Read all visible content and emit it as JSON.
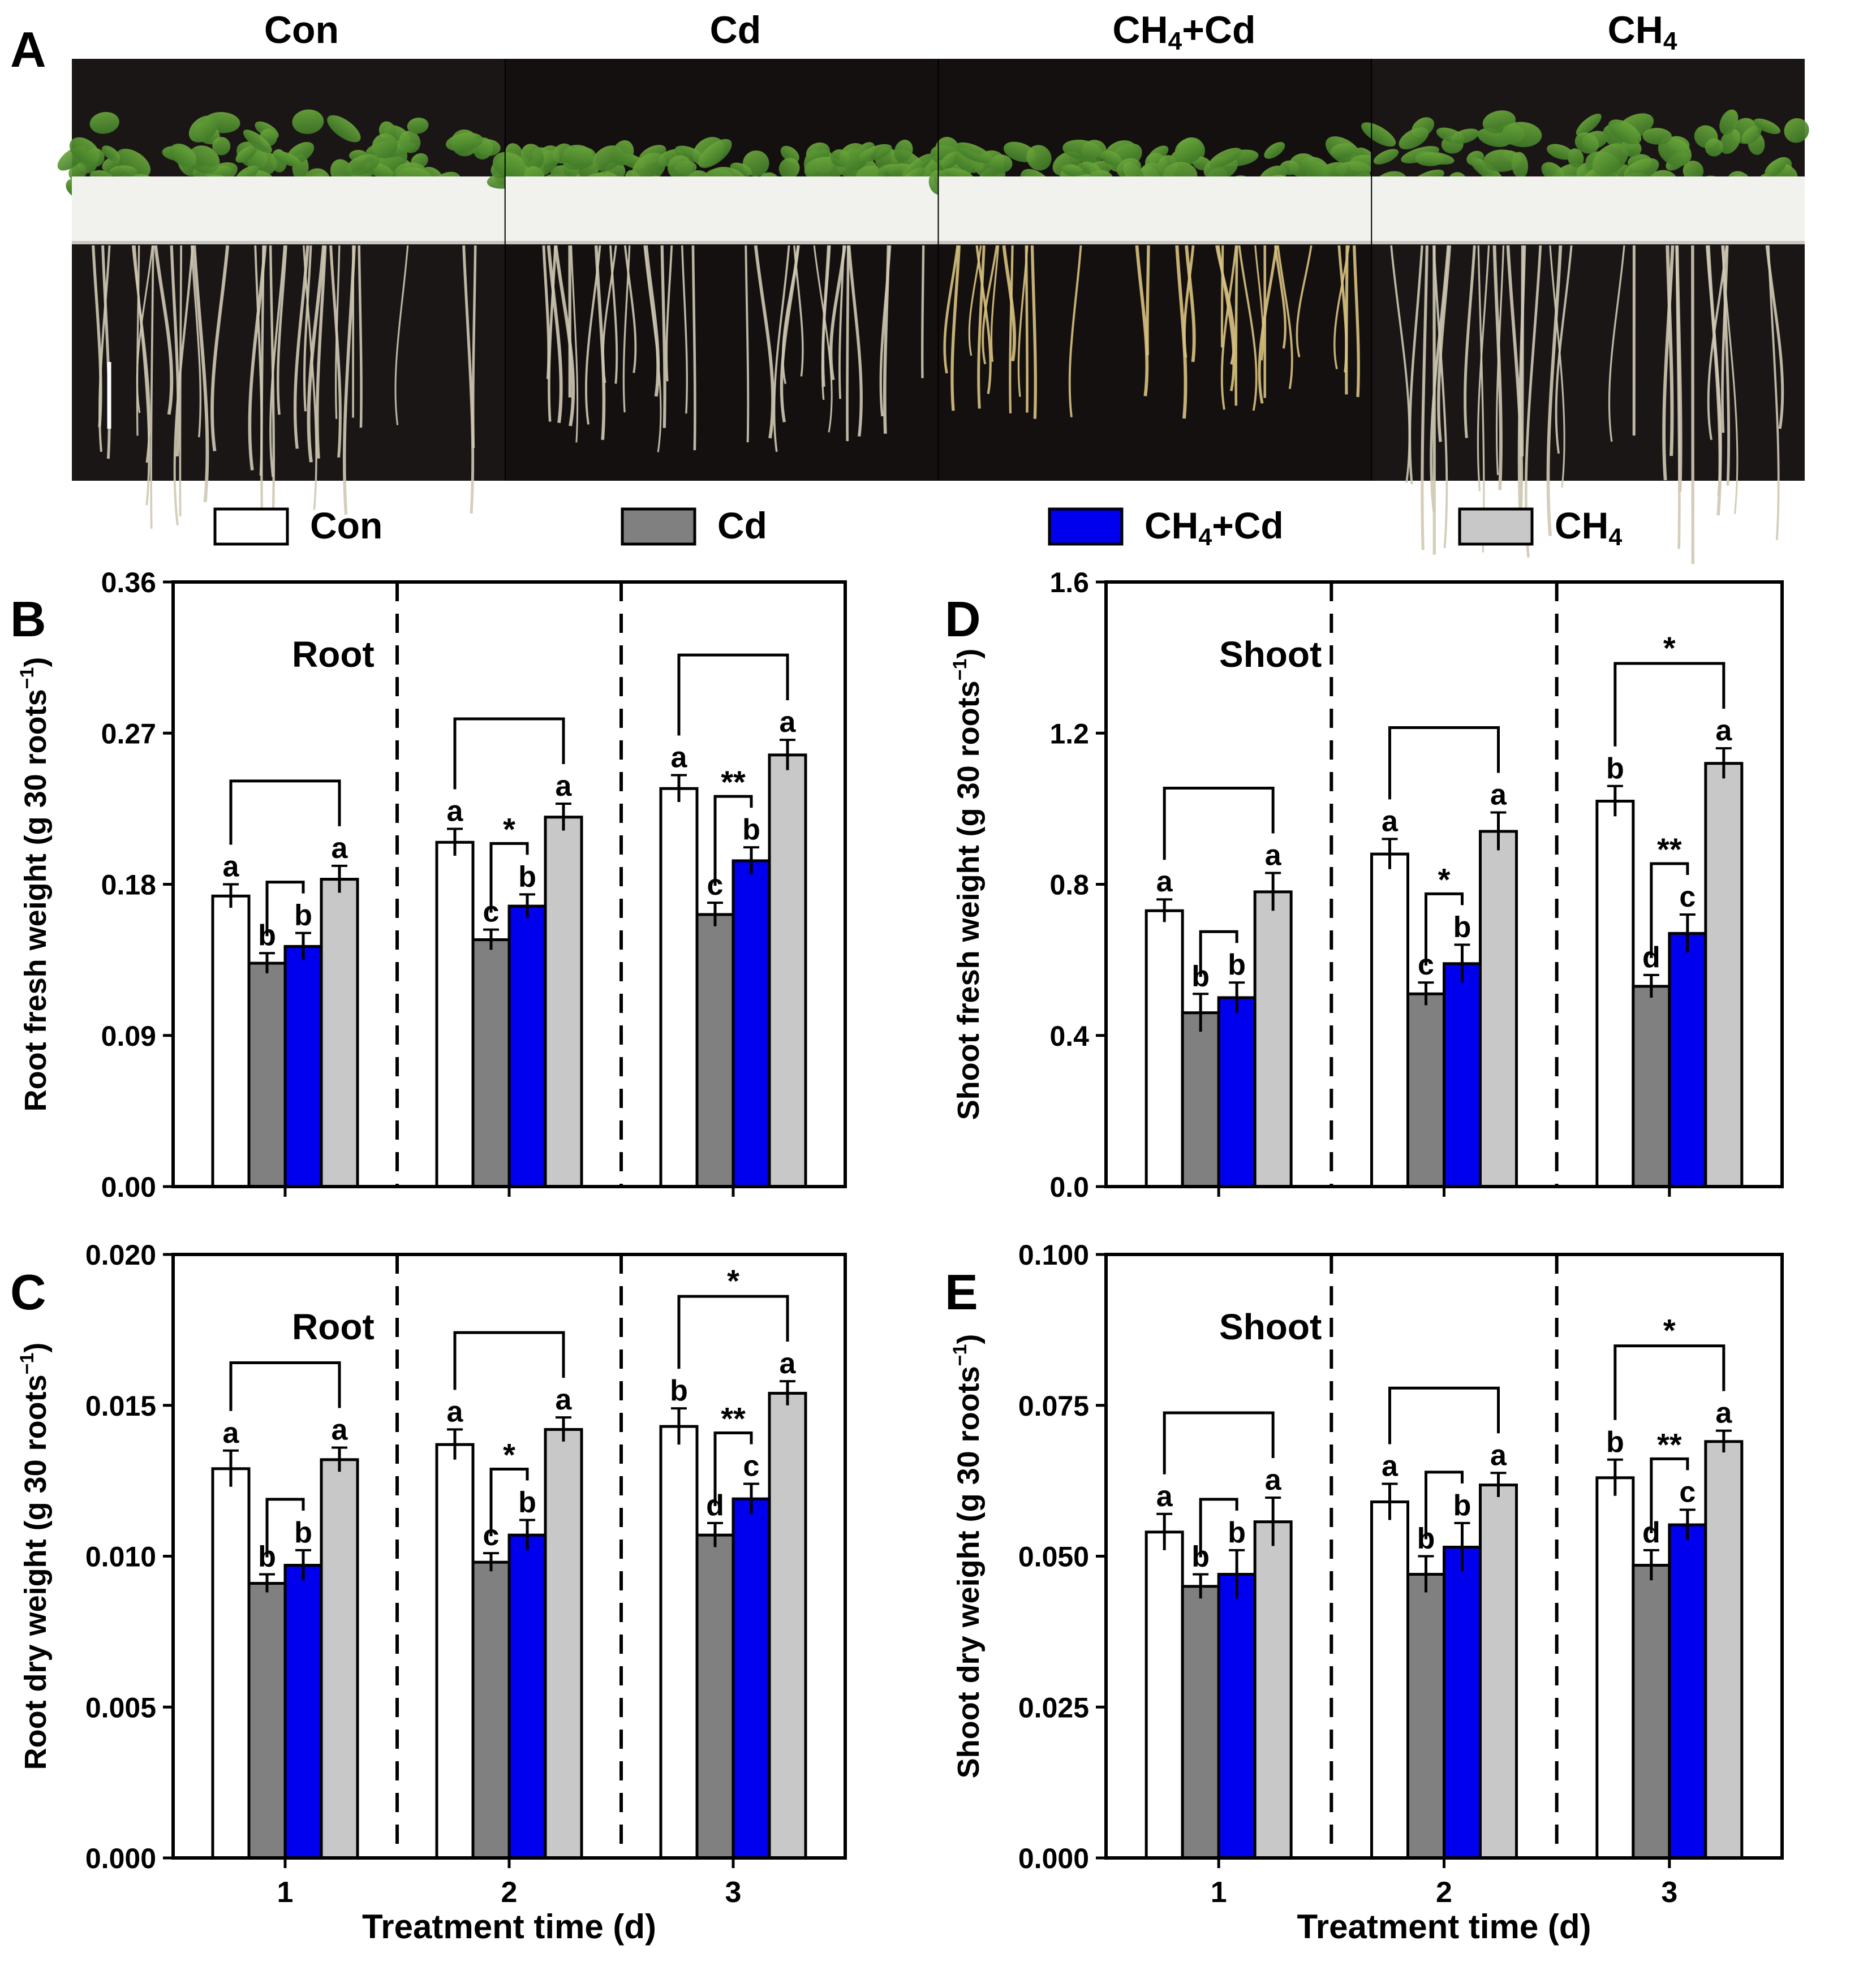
{
  "colors": {
    "con": "#ffffff",
    "cd": "#808080",
    "ch4cd": "#0000ee",
    "ch4": "#c8c8c8",
    "photo_bg": "#1b1616",
    "foam": "#f1f1ee",
    "leaf": "#4f8a2f",
    "root": "#cfc9b4"
  },
  "panel_a": {
    "letter": "A",
    "photo_labels": [
      {
        "main": "Con",
        "sub": ""
      },
      {
        "main": "Cd",
        "sub": ""
      },
      {
        "main": "CH",
        "sub": "4",
        "tail": "+Cd"
      },
      {
        "main": "CH",
        "sub": "4",
        "tail": ""
      }
    ]
  },
  "legend": [
    {
      "key": "con",
      "label": "Con",
      "sub": "",
      "tail": ""
    },
    {
      "key": "cd",
      "label": "Cd",
      "sub": "",
      "tail": ""
    },
    {
      "key": "ch4cd",
      "label": "CH",
      "sub": "4",
      "tail": "+Cd"
    },
    {
      "key": "ch4",
      "label": "CH",
      "sub": "4",
      "tail": ""
    }
  ],
  "chart_data": [
    {
      "panel": "B",
      "type": "bar",
      "inset_title": "Root",
      "ylabel": "Root fresh weight (g 30 roots",
      "ylabel_sup": "−1",
      "ylabel_tail": ")",
      "xlabel": "",
      "ylim": [
        0,
        0.36
      ],
      "yticks": [
        "0.00",
        "0.09",
        "0.18",
        "0.27",
        "0.36"
      ],
      "categories": [
        "1",
        "2",
        "3"
      ],
      "series": [
        {
          "name": "Con",
          "key": "con",
          "values": [
            0.173,
            0.205,
            0.237
          ],
          "errors": [
            0.007,
            0.008,
            0.008
          ],
          "letters": [
            "a",
            "a",
            "a"
          ]
        },
        {
          "name": "Cd",
          "key": "cd",
          "values": [
            0.133,
            0.147,
            0.162
          ],
          "errors": [
            0.006,
            0.006,
            0.007
          ],
          "letters": [
            "b",
            "c",
            "c"
          ]
        },
        {
          "name": "CH4+Cd",
          "key": "ch4cd",
          "values": [
            0.143,
            0.167,
            0.194
          ],
          "errors": [
            0.008,
            0.007,
            0.008
          ],
          "letters": [
            "b",
            "b",
            "b"
          ]
        },
        {
          "name": "CH4",
          "key": "ch4",
          "values": [
            0.183,
            0.22,
            0.257
          ],
          "errors": [
            0.008,
            0.008,
            0.009
          ],
          "letters": [
            "a",
            "a",
            "a"
          ]
        }
      ],
      "brackets": [
        [
          "",
          "",
          ""
        ],
        [
          "*",
          "",
          ""
        ],
        [
          "**",
          "",
          ""
        ]
      ]
    },
    {
      "panel": "C",
      "type": "bar",
      "inset_title": "Root",
      "ylabel": "Root dry weight (g 30 roots",
      "ylabel_sup": "−1",
      "ylabel_tail": ")",
      "xlabel": "Treatment time (d)",
      "ylim": [
        0,
        0.02
      ],
      "yticks": [
        "0.000",
        "0.005",
        "0.010",
        "0.015",
        "0.020"
      ],
      "categories": [
        "1",
        "2",
        "3"
      ],
      "series": [
        {
          "name": "Con",
          "key": "con",
          "values": [
            0.0129,
            0.0137,
            0.0143
          ],
          "errors": [
            0.0006,
            0.0005,
            0.0006
          ],
          "letters": [
            "a",
            "a",
            "b"
          ]
        },
        {
          "name": "Cd",
          "key": "cd",
          "values": [
            0.0091,
            0.0098,
            0.0107
          ],
          "errors": [
            0.0003,
            0.0003,
            0.0004
          ],
          "letters": [
            "b",
            "c",
            "d"
          ]
        },
        {
          "name": "CH4+Cd",
          "key": "ch4cd",
          "values": [
            0.0097,
            0.0107,
            0.0119
          ],
          "errors": [
            0.0005,
            0.0005,
            0.0005
          ],
          "letters": [
            "b",
            "b",
            "c"
          ]
        },
        {
          "name": "CH4",
          "key": "ch4",
          "values": [
            0.0132,
            0.0142,
            0.0154
          ],
          "errors": [
            0.0004,
            0.0004,
            0.0004
          ],
          "letters": [
            "a",
            "a",
            "a"
          ]
        }
      ],
      "brackets": [
        [
          "",
          "",
          ""
        ],
        [
          "*",
          "",
          ""
        ],
        [
          "**",
          "",
          "*"
        ]
      ]
    },
    {
      "panel": "D",
      "type": "bar",
      "inset_title": "Shoot",
      "ylabel": "Shoot fresh weight (g 30 roots",
      "ylabel_sup": "−1",
      "ylabel_tail": ")",
      "xlabel": "",
      "ylim": [
        0,
        1.6
      ],
      "yticks": [
        "0.0",
        "0.4",
        "0.8",
        "1.2",
        "1.6"
      ],
      "categories": [
        "1",
        "2",
        "3"
      ],
      "series": [
        {
          "name": "Con",
          "key": "con",
          "values": [
            0.73,
            0.88,
            1.02
          ],
          "errors": [
            0.03,
            0.04,
            0.04
          ],
          "letters": [
            "a",
            "a",
            "b"
          ]
        },
        {
          "name": "Cd",
          "key": "cd",
          "values": [
            0.46,
            0.51,
            0.53
          ],
          "errors": [
            0.05,
            0.03,
            0.03
          ],
          "letters": [
            "b",
            "c",
            "d"
          ]
        },
        {
          "name": "CH4+Cd",
          "key": "ch4cd",
          "values": [
            0.5,
            0.59,
            0.67
          ],
          "errors": [
            0.04,
            0.05,
            0.05
          ],
          "letters": [
            "b",
            "b",
            "c"
          ]
        },
        {
          "name": "CH4",
          "key": "ch4",
          "values": [
            0.78,
            0.94,
            1.12
          ],
          "errors": [
            0.05,
            0.05,
            0.04
          ],
          "letters": [
            "a",
            "a",
            "a"
          ]
        }
      ],
      "brackets": [
        [
          "",
          "",
          ""
        ],
        [
          "*",
          "",
          ""
        ],
        [
          "**",
          "",
          "*"
        ]
      ]
    },
    {
      "panel": "E",
      "type": "bar",
      "inset_title": "Shoot",
      "ylabel": "Shoot dry weight (g 30 roots",
      "ylabel_sup": "−1",
      "ylabel_tail": ")",
      "xlabel": "Treatment time (d)",
      "ylim": [
        0,
        0.1
      ],
      "yticks": [
        "0.000",
        "0.025",
        "0.050",
        "0.075",
        "0.100"
      ],
      "categories": [
        "1",
        "2",
        "3"
      ],
      "series": [
        {
          "name": "Con",
          "key": "con",
          "values": [
            0.054,
            0.059,
            0.063
          ],
          "errors": [
            0.003,
            0.003,
            0.003
          ],
          "letters": [
            "a",
            "a",
            "b"
          ]
        },
        {
          "name": "Cd",
          "key": "cd",
          "values": [
            0.045,
            0.047,
            0.0485
          ],
          "errors": [
            0.002,
            0.003,
            0.0025
          ],
          "letters": [
            "b",
            "b",
            "d"
          ]
        },
        {
          "name": "CH4+Cd",
          "key": "ch4cd",
          "values": [
            0.047,
            0.0515,
            0.0552
          ],
          "errors": [
            0.004,
            0.004,
            0.0025
          ],
          "letters": [
            "b",
            "b",
            "c"
          ]
        },
        {
          "name": "CH4",
          "key": "ch4",
          "values": [
            0.0557,
            0.0618,
            0.069
          ],
          "errors": [
            0.004,
            0.002,
            0.0018
          ],
          "letters": [
            "a",
            "a",
            "a"
          ]
        }
      ],
      "brackets": [
        [
          "",
          "",
          ""
        ],
        [
          "",
          "",
          ""
        ],
        [
          "**",
          "",
          "*"
        ]
      ]
    }
  ]
}
